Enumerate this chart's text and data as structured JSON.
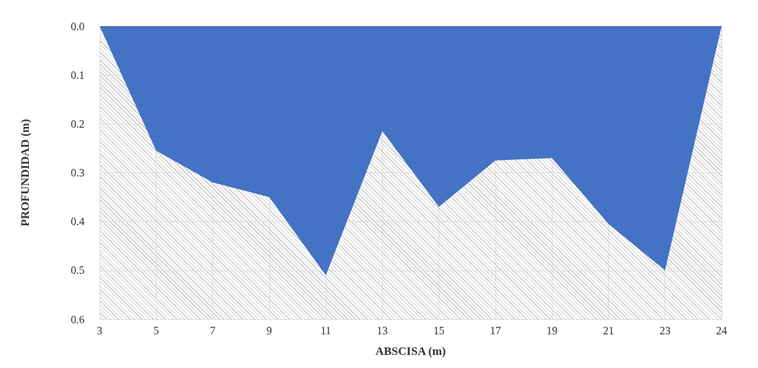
{
  "chart_data": {
    "type": "area",
    "xlabel": "ABSCISA (m)",
    "ylabel": "PROFUNDIDAD (m)",
    "categories": [
      "3",
      "5",
      "7",
      "9",
      "11",
      "13",
      "15",
      "17",
      "19",
      "21",
      "23",
      "24"
    ],
    "series": [
      {
        "color": "#4472c4",
        "values": [
          0,
          0.255,
          0.32,
          0.35,
          0.51,
          0.215,
          0.37,
          0.275,
          0.27,
          0.405,
          0.5,
          0
        ]
      }
    ],
    "ylim": [
      0.6,
      0
    ],
    "yticks": [
      {
        "value": 0,
        "label": "0.0"
      },
      {
        "value": 0.1,
        "label": "0.1"
      },
      {
        "value": 0.2,
        "label": "0.2"
      },
      {
        "value": 0.3,
        "label": "0.3"
      },
      {
        "value": 0.4,
        "label": "0.4"
      },
      {
        "value": 0.5,
        "label": "0.5"
      },
      {
        "value": 0.6,
        "label": "0.6"
      }
    ],
    "grid": true,
    "marker": "none"
  }
}
